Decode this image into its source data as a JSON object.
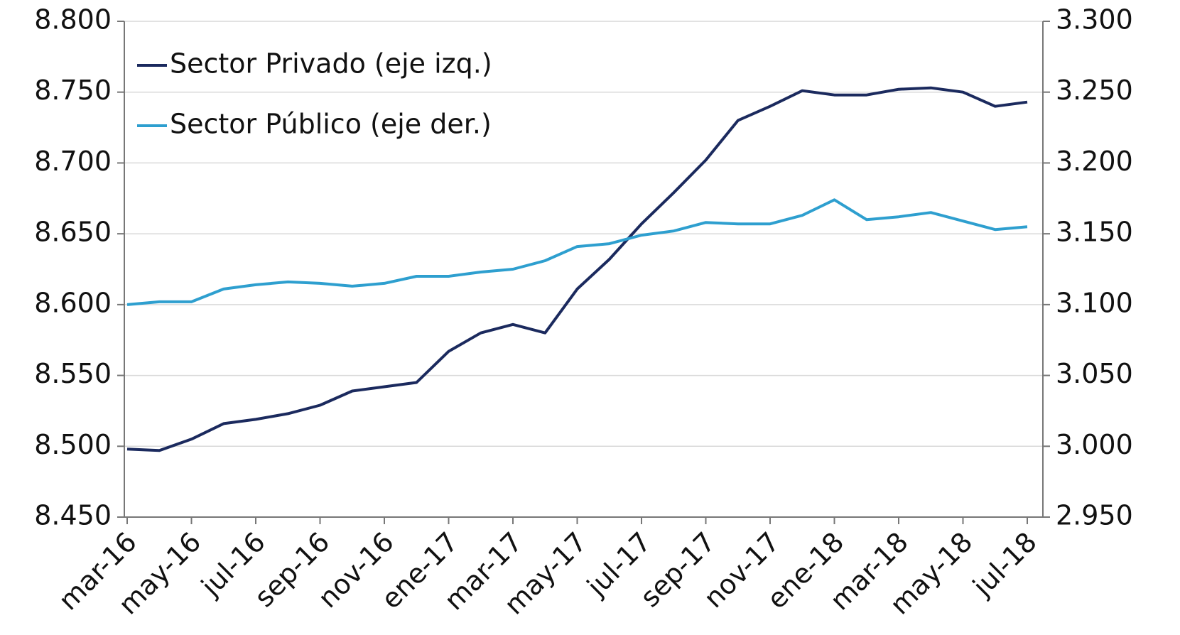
{
  "chart_data": {
    "type": "line",
    "categories": [
      "mar-16",
      null,
      "may-16",
      null,
      "jul-16",
      null,
      "sep-16",
      null,
      "nov-16",
      null,
      "ene-17",
      null,
      "mar-17",
      null,
      "may-17",
      null,
      "jul-17",
      null,
      "sep-17",
      null,
      "nov-17",
      null,
      "ene-18",
      null,
      "mar-18",
      null,
      "may-18",
      null,
      "jul-18"
    ],
    "series": [
      {
        "name": "Sector Privado (eje izq.)",
        "color": "#1b2a5e",
        "axis": "y",
        "values": [
          8498,
          8497,
          8505,
          8516,
          8519,
          8523,
          8529,
          8539,
          8542,
          8545,
          8567,
          8580,
          8586,
          8580,
          8611,
          8632,
          8657,
          8679,
          8702,
          8730,
          8740,
          8751,
          8748,
          8748,
          8752,
          8753,
          8750,
          8740,
          8743
        ]
      },
      {
        "name": "Sector Público (eje der.)",
        "color": "#2e9fcf",
        "axis": "y2",
        "values": [
          3100,
          3102,
          3102,
          3111,
          3114,
          3116,
          3115,
          3113,
          3115,
          3120,
          3120,
          3123,
          3125,
          3131,
          3141,
          3143,
          3149,
          3152,
          3158,
          3157,
          3157,
          3163,
          3174,
          3160,
          3162,
          3165,
          3159,
          3153,
          3155
        ]
      }
    ],
    "ylim": [
      8450,
      8800
    ],
    "yticks": [
      {
        "value": 8450,
        "label": "8.450"
      },
      {
        "value": 8500,
        "label": "8.500"
      },
      {
        "value": 8550,
        "label": "8.550"
      },
      {
        "value": 8600,
        "label": "8.600"
      },
      {
        "value": 8650,
        "label": "8.650"
      },
      {
        "value": 8700,
        "label": "8.700"
      },
      {
        "value": 8750,
        "label": "8.750"
      },
      {
        "value": 8800,
        "label": "8.800"
      }
    ],
    "y2lim": [
      2950,
      3300
    ],
    "y2ticks": [
      {
        "value": 2950,
        "label": "2.950"
      },
      {
        "value": 3000,
        "label": "3.000"
      },
      {
        "value": 3050,
        "label": "3.050"
      },
      {
        "value": 3100,
        "label": "3.100"
      },
      {
        "value": 3150,
        "label": "3.150"
      },
      {
        "value": 3200,
        "label": "3.200"
      },
      {
        "value": 3250,
        "label": "3.250"
      },
      {
        "value": 3300,
        "label": "3.300"
      }
    ],
    "grid": true,
    "legend": "upper left"
  }
}
